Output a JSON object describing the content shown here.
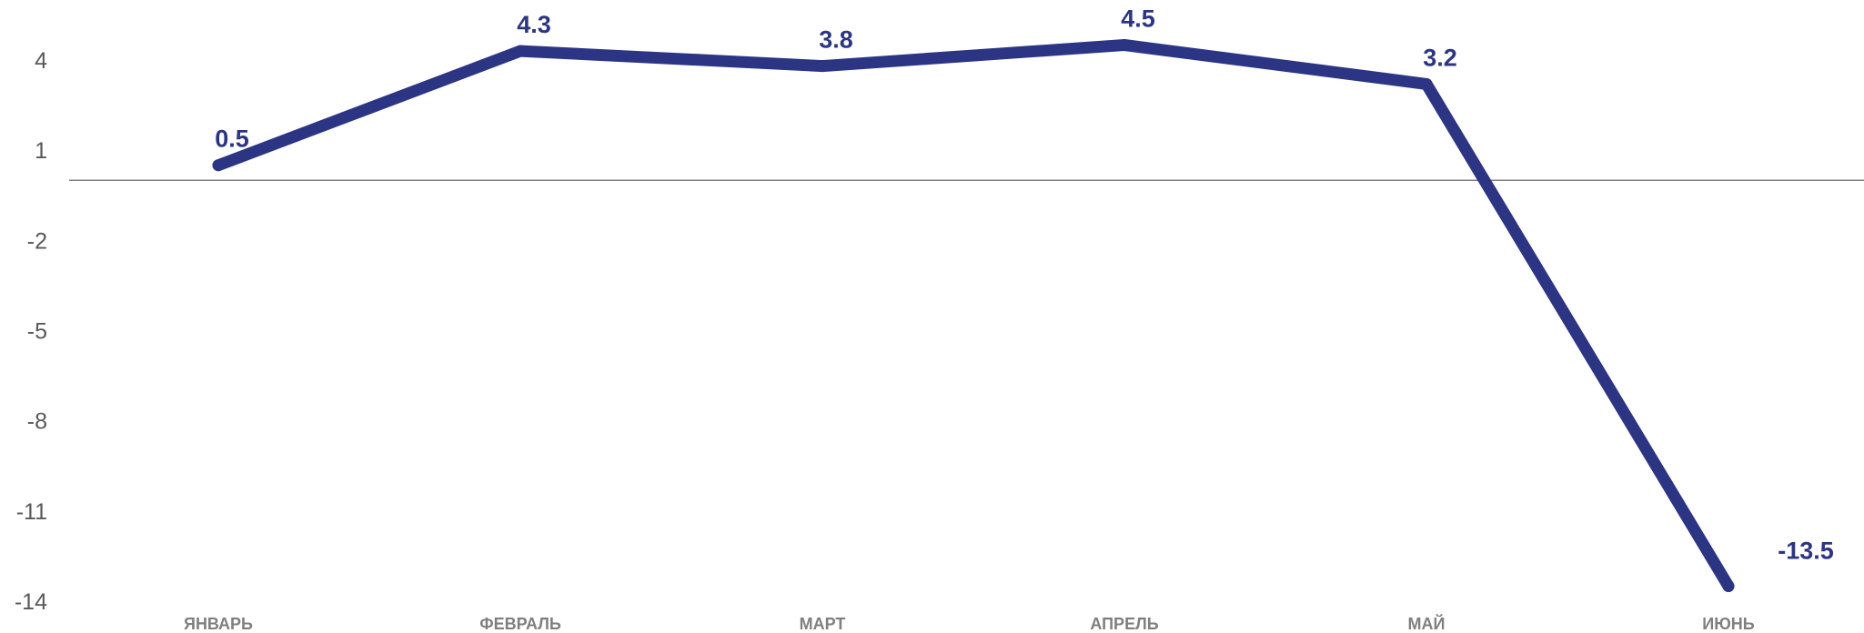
{
  "chart_data": {
    "type": "line",
    "categories": [
      "ЯНВАРЬ",
      "ФЕВРАЛЬ",
      "МАРТ",
      "АПРЕЛЬ",
      "МАЙ",
      "ИЮНЬ"
    ],
    "series": [
      {
        "values": [
          0.5,
          4.3,
          3.8,
          4.5,
          3.2,
          -13.5
        ],
        "labels": [
          "0.5",
          "4.3",
          "3.8",
          "4.5",
          "3.2",
          "-13.5"
        ],
        "color": "#2b3584"
      }
    ],
    "ylim": [
      -14,
      4
    ],
    "yticks": [
      4,
      1,
      -2,
      -5,
      -8,
      -11,
      -14
    ],
    "ytick_labels": [
      "4",
      "1",
      "-2",
      "-5",
      "-8",
      "-11",
      "-14"
    ],
    "title": "",
    "xlabel": "",
    "ylabel": "",
    "zero_line": true,
    "grid": false,
    "legend": "none",
    "axis_text_color": "#595959",
    "category_text_color": "#7f7f7f",
    "zero_line_color": "#808080"
  }
}
